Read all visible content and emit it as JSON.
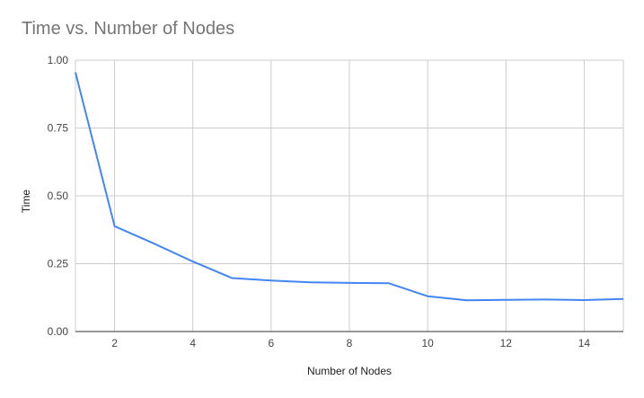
{
  "chart_data": {
    "type": "line",
    "title": "Time vs. Number of Nodes",
    "xlabel": "Number of Nodes",
    "ylabel": "Time",
    "xlim": [
      1,
      15
    ],
    "ylim": [
      0,
      1
    ],
    "x_ticks": [
      2,
      4,
      6,
      8,
      10,
      12,
      14
    ],
    "y_ticks": [
      "0.00",
      "0.25",
      "0.50",
      "0.75",
      "1.00"
    ],
    "grid": true,
    "series": [
      {
        "color": "#4285f4",
        "x": [
          1,
          2,
          3,
          4,
          5,
          6,
          7,
          8,
          9,
          10,
          11,
          12,
          13,
          14,
          15
        ],
        "y": [
          0.955,
          0.388,
          0.325,
          0.258,
          0.197,
          0.188,
          0.181,
          0.179,
          0.178,
          0.13,
          0.115,
          0.117,
          0.118,
          0.116,
          0.12
        ]
      }
    ]
  }
}
